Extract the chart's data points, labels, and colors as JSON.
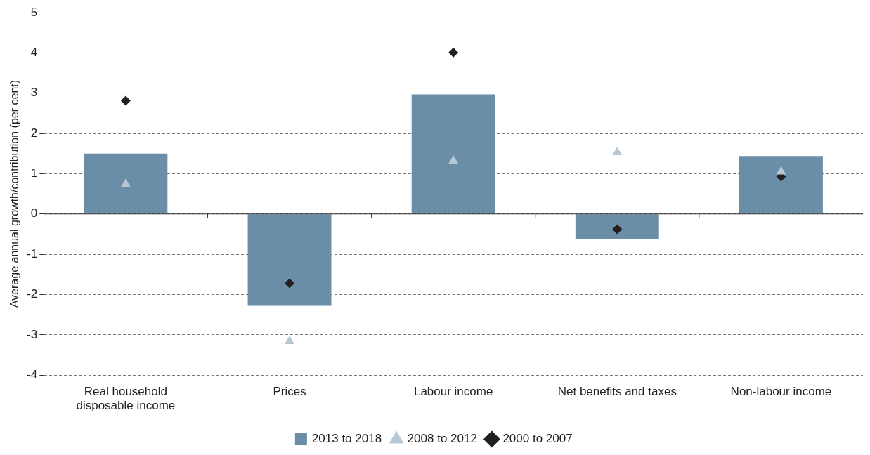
{
  "chart_data": {
    "type": "bar",
    "ylabel": "Average annual growth/contribution (per cent)",
    "categories": [
      "Real household disposable income",
      "Prices",
      "Labour income",
      "Net benefits and taxes",
      "Non-labour income"
    ],
    "series": [
      {
        "name": "2013 to 2018",
        "color": "#6a8ea8",
        "values": [
          1.5,
          -2.28,
          2.97,
          -0.63,
          1.44
        ]
      },
      {
        "name": "2008 to 2012",
        "type": "scatter",
        "marker": "triangle",
        "color": "#b6c7d6",
        "x": [
          "Real household disposable income",
          "Prices",
          "Labour income",
          "Net benefits and taxes",
          "Non-labour income"
        ],
        "values": [
          0.74,
          -3.16,
          1.32,
          1.53,
          1.05
        ]
      },
      {
        "name": "2000 to 2007",
        "type": "scatter",
        "marker": "diamond",
        "color": "#231f20",
        "x": [
          "Real household disposable income",
          "Prices",
          "Labour income",
          "Net benefits and taxes",
          "Non-labour income"
        ],
        "values": [
          2.81,
          -1.72,
          4.01,
          -0.38,
          0.93
        ]
      }
    ],
    "ylim": [
      -4,
      5
    ],
    "yticks": [
      -4,
      -3,
      -2,
      -1,
      0,
      1,
      2,
      3,
      4,
      5
    ],
    "grid": "y",
    "legend": "bottom"
  }
}
